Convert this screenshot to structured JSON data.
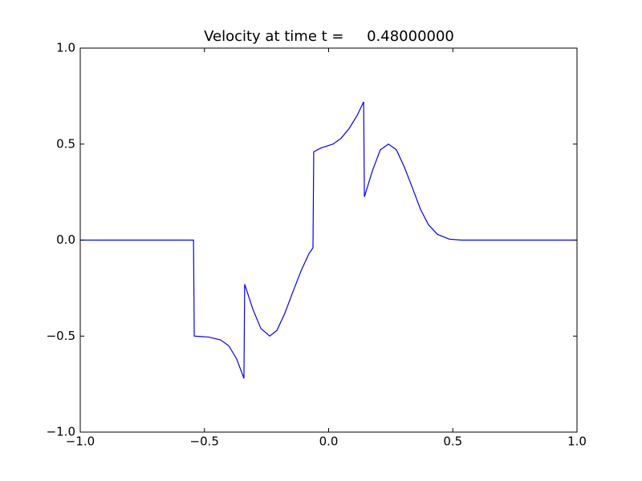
{
  "chart_data": {
    "type": "line",
    "title": "Velocity at time t =     0.48000000",
    "x": [
      -1.0,
      -0.544,
      -0.541,
      -0.483,
      -0.435,
      -0.402,
      -0.37,
      -0.341,
      -0.338,
      -0.305,
      -0.273,
      -0.237,
      -0.208,
      -0.176,
      -0.144,
      -0.111,
      -0.079,
      -0.063,
      -0.06,
      -0.031,
      0.018,
      0.05,
      0.082,
      0.115,
      0.141,
      0.144,
      0.176,
      0.208,
      0.241,
      0.273,
      0.305,
      0.338,
      0.37,
      0.402,
      0.438,
      0.486,
      0.535,
      1.0
    ],
    "values": [
      0,
      0,
      -0.5,
      -0.505,
      -0.52,
      -0.55,
      -0.62,
      -0.72,
      -0.23,
      -0.36,
      -0.46,
      -0.5,
      -0.47,
      -0.38,
      -0.27,
      -0.16,
      -0.07,
      -0.04,
      0.46,
      0.48,
      0.5,
      0.53,
      0.58,
      0.65,
      0.72,
      0.225,
      0.36,
      0.47,
      0.5,
      0.47,
      0.38,
      0.27,
      0.16,
      0.08,
      0.03,
      0.005,
      0,
      0
    ],
    "color": "#0000ff",
    "xlim": [
      -1,
      1
    ],
    "ylim": [
      -1,
      1
    ],
    "xticks": [
      {
        "value": -1,
        "label": "−1.0"
      },
      {
        "value": -0.5,
        "label": "−0.5"
      },
      {
        "value": 0,
        "label": "0.0"
      },
      0.5,
      {
        "value": 1,
        "label": "1.0"
      }
    ],
    "yticks": [
      {
        "value": -1,
        "label": "−1.0"
      },
      {
        "value": -0.5,
        "label": "−0.5"
      },
      {
        "value": 0,
        "label": "0.0"
      },
      0.5,
      {
        "value": 1,
        "label": "1.0"
      }
    ]
  }
}
